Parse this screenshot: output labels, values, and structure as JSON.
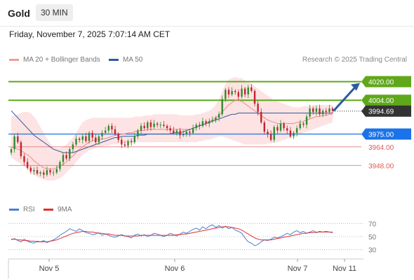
{
  "header": {
    "title": "Gold",
    "timeframe": "30 MIN"
  },
  "datetime": "Friday, November 7, 2025 7:07:14 AM CET",
  "legend": {
    "ma20_label": "MA 20 + Bollinger Bands",
    "ma50_label": "MA 50",
    "credit": "Research © 2025 Trading Central",
    "rsi_label": "RSI",
    "rsi_ma_label": "9MA"
  },
  "colors": {
    "green": "#5fa81a",
    "blue": "#1a73e8",
    "red": "#e05a5a",
    "navy": "#2c5aa0",
    "band": "#fde3e3",
    "dark": "#333333"
  },
  "chart_data": [
    {
      "type": "candlestick",
      "title": "Gold",
      "timeframe": "30 MIN",
      "ylim": [
        3935,
        4030
      ],
      "x_tick_labels": [
        "Nov 5",
        "Nov 6",
        "Nov 7",
        "Nov 11"
      ],
      "levels": [
        {
          "name": "resistance",
          "value": 4020.0,
          "label": "4020.00",
          "color": "#5fa81a"
        },
        {
          "name": "resistance",
          "value": 4004.0,
          "label": "4004.00",
          "color": "#5fa81a"
        },
        {
          "name": "current",
          "value": 3994.69,
          "label": "3994.69",
          "color": "#333333"
        },
        {
          "name": "pivot",
          "value": 3975.0,
          "label": "3975.00",
          "color": "#1a73e8"
        },
        {
          "name": "support",
          "value": 3964.0,
          "label": "3964.00",
          "color": "#e05a5a"
        },
        {
          "name": "support",
          "value": 3948.0,
          "label": "3948.00",
          "color": "#e05a5a"
        }
      ],
      "close": [
        3962,
        3973,
        3968,
        3956,
        3951,
        3946,
        3943,
        3944,
        3941,
        3942,
        3940,
        3944,
        3942,
        3942,
        3945,
        3951,
        3957,
        3954,
        3962,
        3966,
        3971,
        3970,
        3973,
        3969,
        3976,
        3972,
        3968,
        3973,
        3976,
        3978,
        3982,
        3979,
        3975,
        3970,
        3966,
        3965,
        3969,
        3968,
        3973,
        3978,
        3982,
        3980,
        3985,
        3981,
        3984,
        3983,
        3983,
        3982,
        3980,
        3978,
        3976,
        3978,
        3974,
        3975,
        3977,
        3976,
        3980,
        3983,
        3982,
        3986,
        3984,
        3986,
        3987,
        3989,
        3992,
        4005,
        4013,
        4009,
        4012,
        4011,
        4007,
        4014,
        4009,
        4015,
        4012,
        4001,
        3994,
        3985,
        3977,
        3975,
        3970,
        3981,
        3978,
        3984,
        3980,
        3978,
        3973,
        3976,
        3980,
        3984,
        3983,
        3990,
        3997,
        3994,
        3997,
        3992,
        3995,
        3994,
        3997,
        3995
      ],
      "ma20": [
        3964,
        3963,
        3962,
        3961,
        3959,
        3957,
        3955,
        3952,
        3950,
        3948,
        3946,
        3945,
        3945,
        3945,
        3946,
        3947,
        3949,
        3951,
        3954,
        3956,
        3959,
        3962,
        3964,
        3966,
        3968,
        3969,
        3970,
        3970,
        3971,
        3971,
        3972,
        3973,
        3974,
        3974,
        3975,
        3975,
        3976,
        3976,
        3977,
        3978,
        3978,
        3978,
        3979,
        3979,
        3979,
        3979,
        3979,
        3979,
        3979,
        3979,
        3979,
        3979,
        3979,
        3979,
        3979,
        3979,
        3980,
        3981,
        3982,
        3983,
        3984,
        3986,
        3987,
        3989,
        3991,
        3994,
        3997,
        4000,
        4002,
        4004,
        4004,
        4003,
        4001,
        3999,
        3997,
        3995,
        3993,
        3991,
        3989,
        3987,
        3986,
        3985,
        3984,
        3984,
        3984,
        3984,
        3984,
        3984,
        3985,
        3985,
        3986,
        3987,
        3988,
        3989,
        3990,
        3990,
        3991,
        3991,
        3992,
        3992
      ],
      "upper_band": [
        3990,
        3991,
        3992,
        3993,
        3994,
        3994,
        3993,
        3990,
        3986,
        3981,
        3976,
        3971,
        3967,
        3964,
        3963,
        3963,
        3964,
        3966,
        3969,
        3972,
        3976,
        3981,
        3985,
        3987,
        3988,
        3989,
        3989,
        3989,
        3989,
        3989,
        3989,
        3989,
        3989,
        3989,
        3989,
        3989,
        3989,
        3989,
        3990,
        3990,
        3990,
        3991,
        3991,
        3991,
        3992,
        3992,
        3992,
        3992,
        3992,
        3992,
        3992,
        3992,
        3991,
        3991,
        3991,
        3991,
        3991,
        3992,
        3992,
        3993,
        3994,
        3995,
        3997,
        4000,
        4005,
        4012,
        4018,
        4022,
        4023,
        4024,
        4023,
        4023,
        4021,
        4020,
        4018,
        4016,
        4014,
        4012,
        4010,
        4008,
        4006,
        4004,
        4003,
        4002,
        4001,
        4000,
        3999,
        3998,
        3998,
        3998,
        3999,
        3999,
        3999,
        4000,
        4000,
        4000,
        4000,
        4000,
        4000,
        4000
      ],
      "lower_band": [
        3955,
        3953,
        3951,
        3949,
        3947,
        3945,
        3942,
        3940,
        3938,
        3937,
        3936,
        3935,
        3935,
        3935,
        3936,
        3937,
        3939,
        3942,
        3945,
        3947,
        3951,
        3954,
        3957,
        3959,
        3961,
        3962,
        3963,
        3964,
        3964,
        3965,
        3965,
        3966,
        3966,
        3967,
        3967,
        3967,
        3967,
        3967,
        3968,
        3968,
        3968,
        3968,
        3968,
        3968,
        3968,
        3968,
        3968,
        3968,
        3968,
        3968,
        3968,
        3968,
        3968,
        3968,
        3968,
        3968,
        3968,
        3968,
        3969,
        3969,
        3970,
        3970,
        3971,
        3972,
        3973,
        3973,
        3972,
        3971,
        3970,
        3969,
        3968,
        3967,
        3966,
        3966,
        3966,
        3966,
        3966,
        3966,
        3966,
        3967,
        3967,
        3968,
        3968,
        3969,
        3970,
        3971,
        3972,
        3973,
        3974,
        3975,
        3976,
        3977,
        3978,
        3979,
        3980,
        3981,
        3982,
        3983,
        3984,
        3985
      ],
      "ma50": [
        3995,
        3992,
        3989,
        3986,
        3983,
        3980,
        3977,
        3974,
        3972,
        3970,
        3968,
        3966,
        3964,
        3962,
        3961,
        3960,
        3959,
        3959,
        3959,
        3959,
        3960,
        3961,
        3962,
        3963,
        3964,
        3965,
        3966,
        3967,
        3968,
        3969,
        3970,
        3971,
        3972,
        3972,
        3973,
        3973,
        3973,
        3973,
        3973,
        3974,
        3974,
        3974,
        3975,
        3975,
        3975,
        3975,
        3975,
        3975,
        3975,
        3975,
        3976,
        3976,
        3976,
        3977,
        3978,
        3979,
        3980,
        3981,
        3982,
        3983,
        3984,
        3985,
        3986,
        3987,
        3988,
        3989,
        3990,
        3991,
        3992,
        3992,
        3993,
        3993,
        3993,
        3993,
        3993,
        3993,
        3993,
        3993,
        3993,
        3993,
        3993,
        3993,
        3993,
        3993,
        3993,
        3993,
        3993,
        3993,
        3993,
        3993,
        3993,
        3993,
        3993,
        3993,
        3993,
        3993,
        3993,
        3993,
        3993,
        3993
      ]
    },
    {
      "type": "line",
      "title": "RSI",
      "ylim": [
        20,
        80
      ],
      "y_ticks": [
        70,
        50,
        30
      ],
      "series": [
        {
          "name": "RSI",
          "color": "#4a7fd4",
          "values": [
            45,
            47,
            44,
            42,
            46,
            43,
            41,
            40,
            43,
            42,
            44,
            41,
            43,
            45,
            48,
            52,
            55,
            58,
            62,
            60,
            58,
            62,
            59,
            56,
            55,
            53,
            54,
            56,
            52,
            54,
            52,
            50,
            49,
            51,
            53,
            51,
            50,
            48,
            52,
            54,
            51,
            53,
            50,
            52,
            55,
            54,
            52,
            50,
            52,
            55,
            53,
            51,
            54,
            57,
            55,
            58,
            61,
            63,
            60,
            65,
            62,
            66,
            68,
            64,
            67,
            63,
            66,
            62,
            64,
            60,
            58,
            55,
            48,
            42,
            40,
            36,
            38,
            42,
            45,
            44,
            46,
            49,
            48,
            50,
            52,
            55,
            53,
            57,
            59,
            56,
            58,
            55,
            57,
            59,
            56,
            58,
            57,
            58,
            57,
            56
          ]
        },
        {
          "name": "9MA",
          "color": "#e03030",
          "values": [
            46,
            46,
            45,
            45,
            44,
            44,
            43,
            43,
            42,
            42,
            42,
            42,
            43,
            44,
            45,
            47,
            49,
            51,
            53,
            55,
            56,
            57,
            58,
            58,
            57,
            57,
            56,
            55,
            55,
            54,
            54,
            53,
            52,
            52,
            52,
            51,
            51,
            51,
            51,
            51,
            52,
            52,
            52,
            52,
            52,
            52,
            52,
            52,
            52,
            52,
            52,
            53,
            53,
            54,
            54,
            55,
            56,
            57,
            58,
            59,
            60,
            61,
            62,
            63,
            64,
            65,
            65,
            65,
            64,
            63,
            62,
            60,
            57,
            54,
            51,
            48,
            46,
            45,
            45,
            45,
            45,
            46,
            47,
            48,
            49,
            50,
            51,
            52,
            53,
            54,
            55,
            55,
            56,
            56,
            57,
            57,
            57,
            57,
            57,
            57
          ]
        }
      ]
    }
  ]
}
